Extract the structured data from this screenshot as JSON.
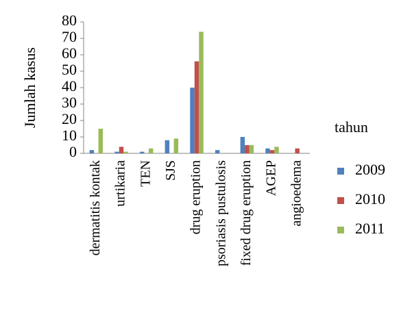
{
  "chart_data": {
    "type": "bar",
    "y_label": "Jumlah kasus",
    "legend_title": "tahun",
    "legend_position": "right",
    "categories": [
      "dermatitis kontak",
      "urtikaria",
      "TEN",
      "SJS",
      "drug eruption",
      "psoriasis pustulosis",
      "fixed drug eruption",
      "AGEP",
      "angioedema"
    ],
    "series": [
      {
        "name": "2009",
        "color": "#4f81bd",
        "values": [
          2,
          1,
          1,
          8,
          40,
          2,
          10,
          3,
          0
        ]
      },
      {
        "name": "2010",
        "color": "#c0504d",
        "values": [
          0,
          4,
          0,
          0,
          56,
          0,
          5,
          2,
          3
        ]
      },
      {
        "name": "2011",
        "color": "#9bbb59",
        "values": [
          15,
          1,
          3,
          9,
          74,
          0,
          5,
          4,
          0
        ]
      }
    ],
    "ylim": [
      0,
      80
    ],
    "yticks": [
      0,
      10,
      20,
      30,
      40,
      50,
      60,
      70,
      80
    ],
    "grid": false
  }
}
